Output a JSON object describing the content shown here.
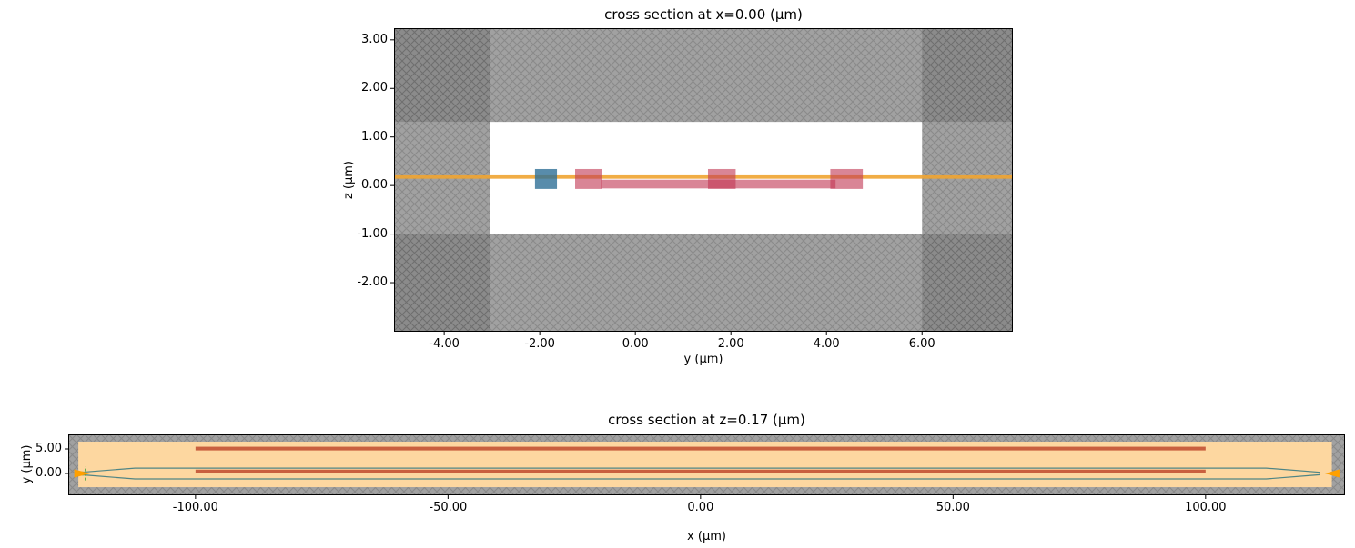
{
  "figure": {
    "background": "#ffffff"
  },
  "chart_data": [
    {
      "type": "geometry-cross-section",
      "title": "cross section at x=0.00 (μm)",
      "xlabel": "y (μm)",
      "ylabel": "z (μm)",
      "xlim": [
        -5.05,
        7.9
      ],
      "ylim": [
        -3.01,
        3.24
      ],
      "xticks": [
        -4,
        -2,
        0,
        2,
        4,
        6
      ],
      "yticks": [
        -2,
        -1,
        0,
        1,
        2,
        3
      ],
      "tick_decimals": 2,
      "grid": false,
      "legend": false,
      "colors": {
        "hatch_bg": "#a1a1a1",
        "hatch_line": "#8a8a8a",
        "hatch_dark_bg": "#8b8b8b",
        "hatch_dark_line": "#6f6f6f"
      },
      "dark_regions": [
        {
          "x": [
            -5.05,
            -3.05
          ],
          "y": [
            1.31,
            3.24
          ]
        },
        {
          "x": [
            6.0,
            7.9
          ],
          "y": [
            1.31,
            3.24
          ]
        },
        {
          "x": [
            -5.05,
            -3.05
          ],
          "y": [
            -3.01,
            -1.0
          ]
        },
        {
          "x": [
            6.0,
            7.9
          ],
          "y": [
            -3.01,
            -1.0
          ]
        }
      ],
      "interior": {
        "x": [
          -3.05,
          6.0
        ],
        "y": [
          -1.0,
          1.31
        ],
        "fill": "#ffffff"
      },
      "shapes": [
        {
          "type": "rect",
          "name": "oxide-interface-line",
          "x": [
            -5.05,
            7.9
          ],
          "y": [
            0.14,
            0.21
          ],
          "fill": "#f0a431",
          "opacity": 0.9
        },
        {
          "type": "rect",
          "name": "slab-layer",
          "x": [
            -0.72,
            4.19
          ],
          "y": [
            -0.06,
            0.12
          ],
          "fill": "#c23a55",
          "opacity": 0.62
        },
        {
          "type": "rect",
          "name": "waveguide-core",
          "x": [
            -2.1,
            -1.64
          ],
          "y": [
            -0.07,
            0.34
          ],
          "fill": "#2e6f96",
          "opacity": 0.8
        },
        {
          "type": "rect",
          "name": "ridge-left",
          "x": [
            -1.26,
            -0.69
          ],
          "y": [
            -0.07,
            0.34
          ],
          "fill": "#c23a55",
          "opacity": 0.62
        },
        {
          "type": "rect",
          "name": "ridge-center",
          "x": [
            1.52,
            2.1
          ],
          "y": [
            -0.07,
            0.34
          ],
          "fill": "#c23a55",
          "opacity": 0.62
        },
        {
          "type": "rect",
          "name": "ridge-right",
          "x": [
            4.08,
            4.76
          ],
          "y": [
            -0.07,
            0.34
          ],
          "fill": "#c23a55",
          "opacity": 0.62
        }
      ]
    },
    {
      "type": "geometry-cross-section",
      "title": "cross section at z=0.17 (μm)",
      "xlabel": "x (μm)",
      "ylabel": "y (μm)",
      "xlim": [
        -125.2,
        127.6
      ],
      "ylim": [
        -4.44,
        7.96
      ],
      "xticks": [
        -100,
        -50,
        0,
        50,
        100
      ],
      "yticks": [
        0,
        5
      ],
      "tick_decimals": 2,
      "grid": false,
      "legend": false,
      "colors": {
        "hatch_bg": "#a1a1a1",
        "hatch_line": "#8a8a8a",
        "hatch_dark_bg": "#8b8b8b",
        "hatch_dark_line": "#6f6f6f"
      },
      "dark_regions": [],
      "interior": {
        "x": [
          -123.2,
          125.0
        ],
        "y": [
          -2.78,
          6.48
        ],
        "fill": "#fdd7a0"
      },
      "shapes": [
        {
          "type": "rect",
          "name": "heater-track-top",
          "x": [
            -100,
            100
          ],
          "y": [
            4.7,
            5.45
          ],
          "fill": "#c04b2e",
          "opacity": 0.85
        },
        {
          "type": "rect",
          "name": "heater-track-bottom",
          "x": [
            -100,
            100
          ],
          "y": [
            0.1,
            0.78
          ],
          "fill": "#c04b2e",
          "opacity": 0.85
        },
        {
          "type": "polygon",
          "name": "waveguide-outline",
          "closed": true,
          "stroke": "#4f8585",
          "strokeWidth": 1.2,
          "fill": "none",
          "points": [
            [
              -122.6,
              0.25
            ],
            [
              -112,
              1.1
            ],
            [
              112,
              1.1
            ],
            [
              122.6,
              0.25
            ],
            [
              122.6,
              -0.25
            ],
            [
              112,
              -1.1
            ],
            [
              -112,
              -1.1
            ],
            [
              -122.6,
              -0.25
            ]
          ]
        },
        {
          "type": "rect",
          "name": "port-marker-left",
          "x": [
            -123.8,
            -122.2
          ],
          "y": [
            -0.4,
            0.4
          ],
          "fill": "#1e7a1e",
          "opacity": 0.9
        },
        {
          "type": "vdash",
          "name": "port-plane-left",
          "x": -121.8,
          "y": [
            -1.4,
            1.4
          ],
          "stroke": "#2f9e2f"
        },
        {
          "type": "arrow",
          "name": "port-arrow-left",
          "tip": [
            -120.9,
            0
          ],
          "base": [
            -124.0,
            0
          ],
          "h": 9,
          "fill": "#ffa000"
        },
        {
          "type": "arrow",
          "name": "port-arrow-right",
          "tip": [
            123.6,
            0
          ],
          "base": [
            126.5,
            0
          ],
          "h": 9,
          "fill": "#ffa000"
        }
      ]
    }
  ]
}
